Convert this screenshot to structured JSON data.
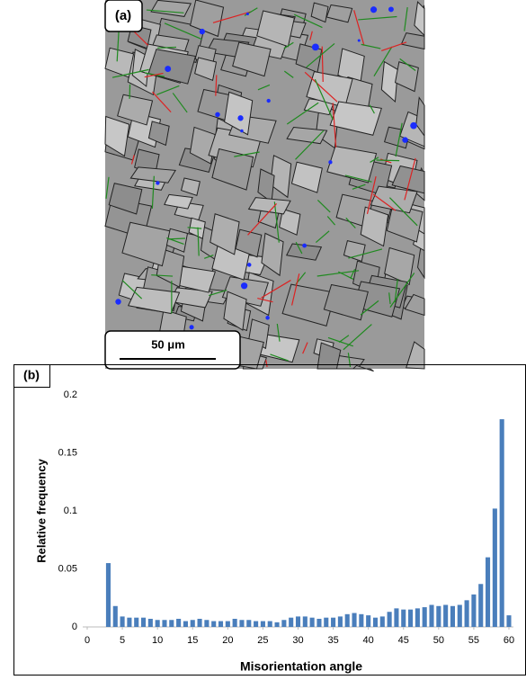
{
  "panel_a": {
    "label": "(a)",
    "scale_bar": "50 μm"
  },
  "chart_data": {
    "type": "bar",
    "panel_label": "(b)",
    "x_label": "Misorientation angle",
    "y_label": "Relative frequency",
    "x": [
      3,
      4,
      5,
      6,
      7,
      8,
      9,
      10,
      11,
      12,
      13,
      14,
      15,
      16,
      17,
      18,
      19,
      20,
      21,
      22,
      23,
      24,
      25,
      26,
      27,
      28,
      29,
      30,
      31,
      32,
      33,
      34,
      35,
      36,
      37,
      38,
      39,
      40,
      41,
      42,
      43,
      44,
      45,
      46,
      47,
      48,
      49,
      50,
      51,
      52,
      53,
      54,
      55,
      56,
      57,
      58,
      59,
      60
    ],
    "values": [
      0.055,
      0.018,
      0.009,
      0.008,
      0.008,
      0.008,
      0.007,
      0.006,
      0.006,
      0.006,
      0.007,
      0.005,
      0.006,
      0.007,
      0.006,
      0.005,
      0.005,
      0.005,
      0.007,
      0.006,
      0.006,
      0.005,
      0.005,
      0.005,
      0.004,
      0.006,
      0.008,
      0.009,
      0.009,
      0.008,
      0.007,
      0.008,
      0.008,
      0.009,
      0.011,
      0.012,
      0.011,
      0.01,
      0.008,
      0.009,
      0.013,
      0.016,
      0.015,
      0.015,
      0.016,
      0.017,
      0.019,
      0.018,
      0.019,
      0.018,
      0.019,
      0.023,
      0.028,
      0.037,
      0.06,
      0.102,
      0.179,
      0.01
    ],
    "color": "#4a7ebb",
    "xlim": [
      0,
      60
    ],
    "xticks": [
      0,
      5,
      10,
      15,
      20,
      25,
      30,
      35,
      40,
      45,
      50,
      55,
      60
    ],
    "ylim": [
      0,
      0.2
    ],
    "yticks": [
      0,
      0.05,
      0.1,
      0.15,
      0.2
    ]
  }
}
